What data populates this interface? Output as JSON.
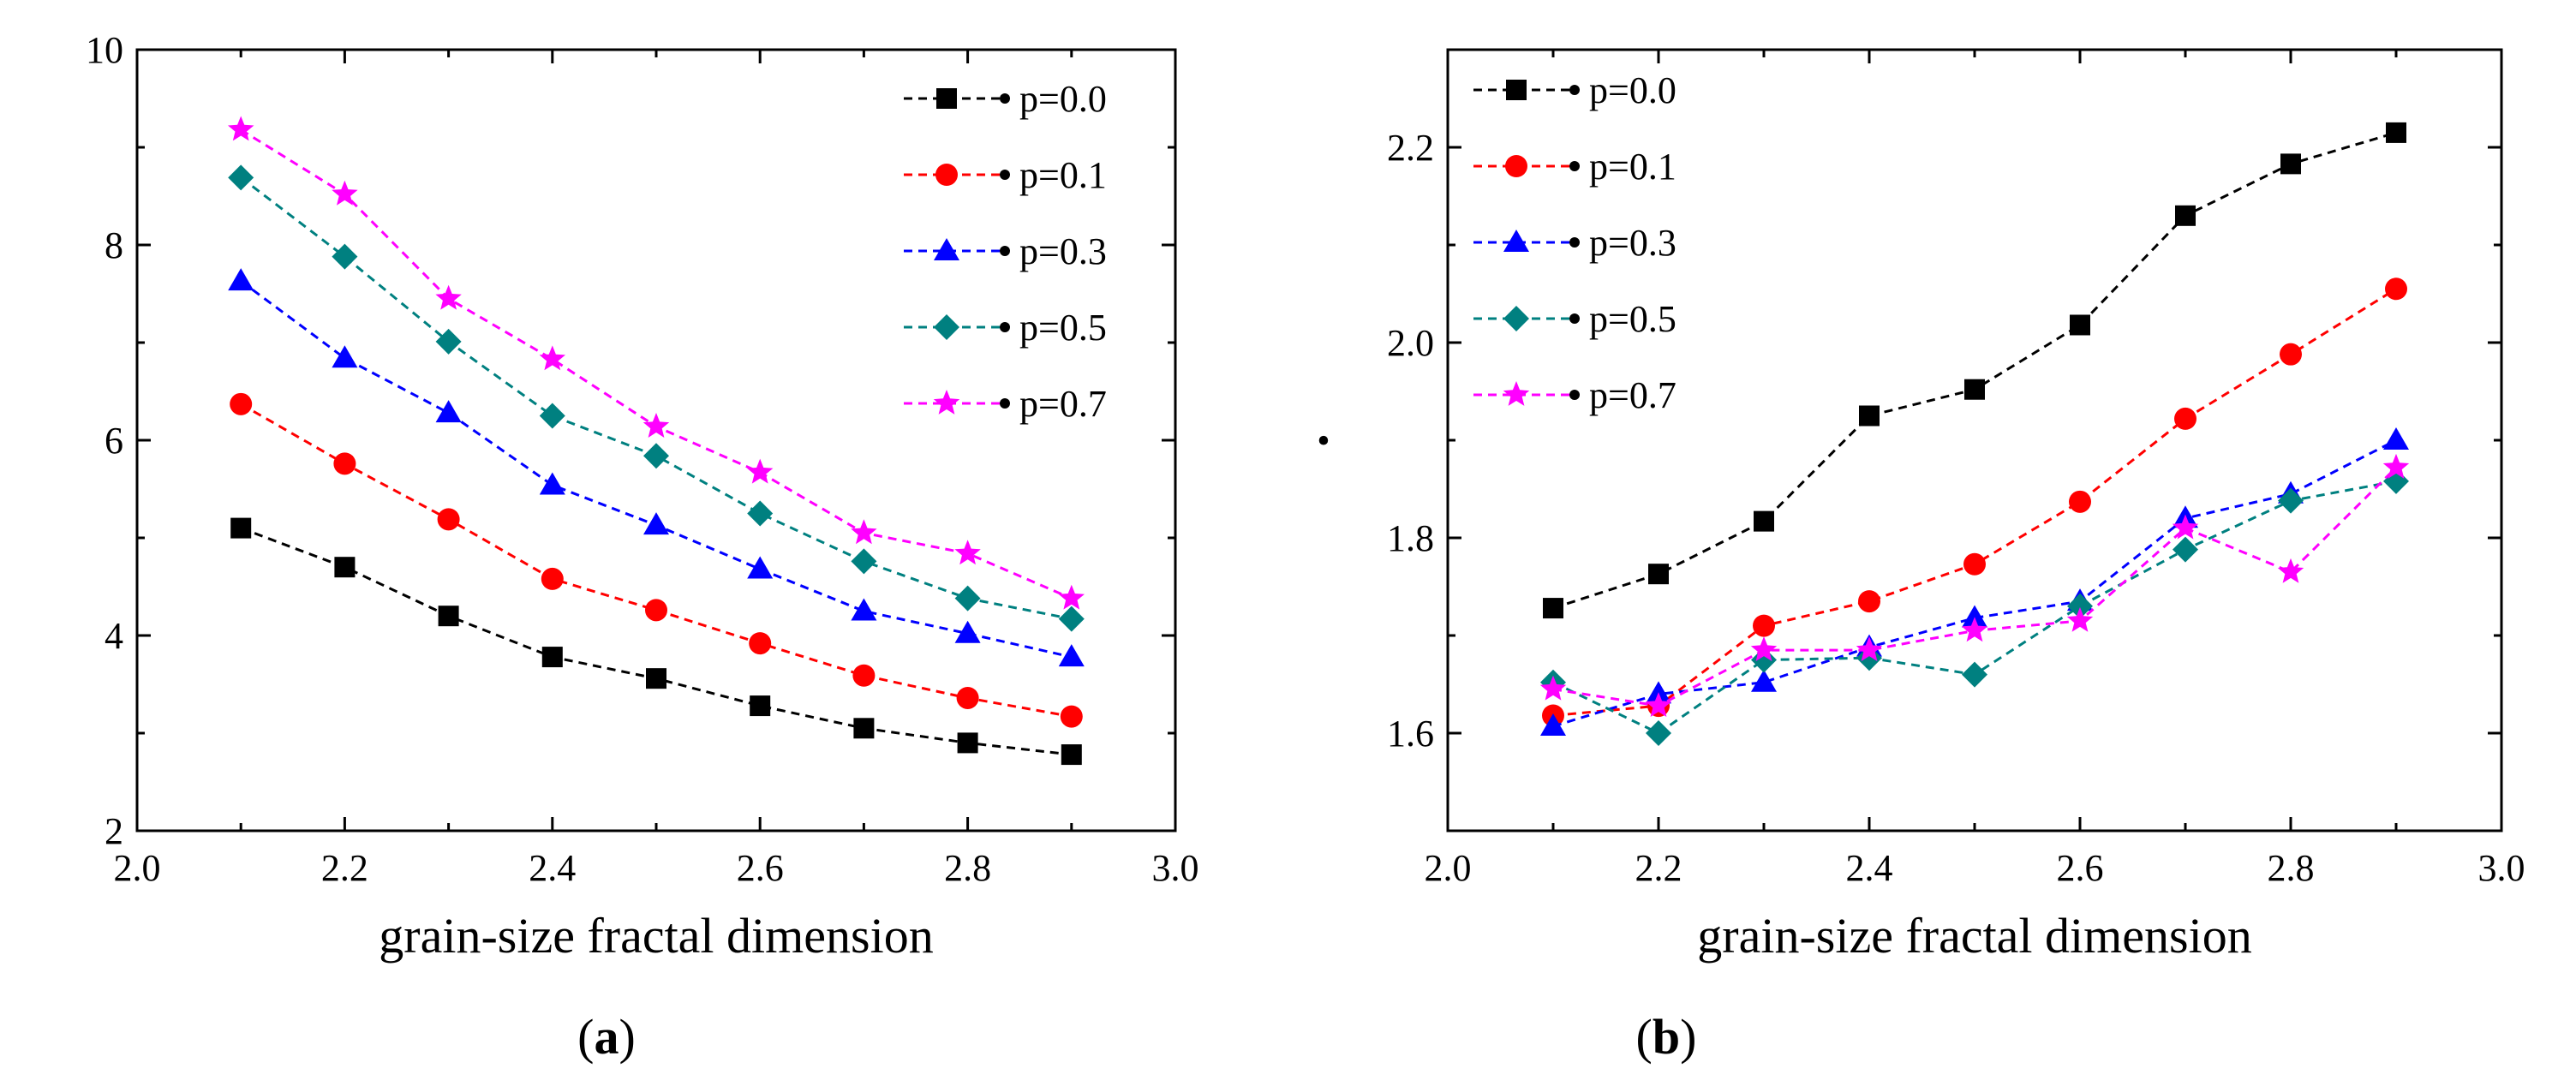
{
  "chart_data": [
    {
      "type": "line",
      "panel_label_letter": "a",
      "xlabel": "grain-size fractal dimension",
      "ylabel": "",
      "xlim": [
        2.0,
        3.0
      ],
      "ylim": [
        2,
        10
      ],
      "xticks": [
        "2.0",
        "2.2",
        "2.4",
        "2.6",
        "2.8",
        "3.0"
      ],
      "yticks": [
        "2",
        "4",
        "6",
        "8",
        "10"
      ],
      "legend_position": "top-right",
      "x": [
        2.1,
        2.2,
        2.3,
        2.4,
        2.5,
        2.6,
        2.7,
        2.8,
        2.9
      ],
      "series": [
        {
          "name": "p=0.0",
          "color": "#000000",
          "marker": "square",
          "values": [
            5.1,
            4.7,
            4.2,
            3.78,
            3.56,
            3.28,
            3.05,
            2.9,
            2.78
          ]
        },
        {
          "name": "p=0.1",
          "color": "#ff0000",
          "marker": "circle",
          "values": [
            6.37,
            5.76,
            5.19,
            4.58,
            4.26,
            3.92,
            3.59,
            3.36,
            3.17
          ]
        },
        {
          "name": "p=0.3",
          "color": "#0000ff",
          "marker": "triangle",
          "values": [
            7.63,
            6.84,
            6.28,
            5.54,
            5.13,
            4.68,
            4.25,
            4.02,
            3.78
          ]
        },
        {
          "name": "p=0.5",
          "color": "#008080",
          "marker": "diamond",
          "values": [
            8.69,
            7.88,
            7.01,
            6.25,
            5.84,
            5.25,
            4.76,
            4.38,
            4.17
          ]
        },
        {
          "name": "p=0.7",
          "color": "#ff00ff",
          "marker": "star",
          "values": [
            9.18,
            8.52,
            7.45,
            6.83,
            6.14,
            5.67,
            5.05,
            4.84,
            4.38
          ]
        }
      ]
    },
    {
      "type": "line",
      "panel_label_letter": "b",
      "xlabel": "grain-size fractal dimension",
      "ylabel": "•",
      "xlim": [
        2.0,
        3.0
      ],
      "ylim": [
        1.5,
        2.3
      ],
      "xticks": [
        "2.0",
        "2.2",
        "2.4",
        "2.6",
        "2.8",
        "3.0"
      ],
      "yticks": [
        "1.6",
        "1.8",
        "2.0",
        "2.2"
      ],
      "legend_position": "top-left",
      "x": [
        2.1,
        2.2,
        2.3,
        2.4,
        2.5,
        2.6,
        2.7,
        2.8,
        2.9
      ],
      "series": [
        {
          "name": "p=0.0",
          "color": "#000000",
          "marker": "square",
          "values": [
            1.728,
            1.763,
            1.817,
            1.925,
            1.952,
            2.018,
            2.13,
            2.183,
            2.215
          ]
        },
        {
          "name": "p=0.1",
          "color": "#ff0000",
          "marker": "circle",
          "values": [
            1.618,
            1.628,
            1.71,
            1.735,
            1.773,
            1.837,
            1.922,
            1.988,
            2.055
          ]
        },
        {
          "name": "p=0.3",
          "color": "#0000ff",
          "marker": "triangle",
          "values": [
            1.607,
            1.64,
            1.652,
            1.688,
            1.718,
            1.735,
            1.82,
            1.845,
            1.9
          ]
        },
        {
          "name": "p=0.5",
          "color": "#008080",
          "marker": "diamond",
          "values": [
            1.652,
            1.6,
            1.675,
            1.677,
            1.66,
            1.73,
            1.788,
            1.838,
            1.858
          ]
        },
        {
          "name": "p=0.7",
          "color": "#ff00ff",
          "marker": "star",
          "values": [
            1.645,
            1.628,
            1.685,
            1.685,
            1.705,
            1.715,
            1.81,
            1.765,
            1.872
          ]
        }
      ]
    }
  ]
}
